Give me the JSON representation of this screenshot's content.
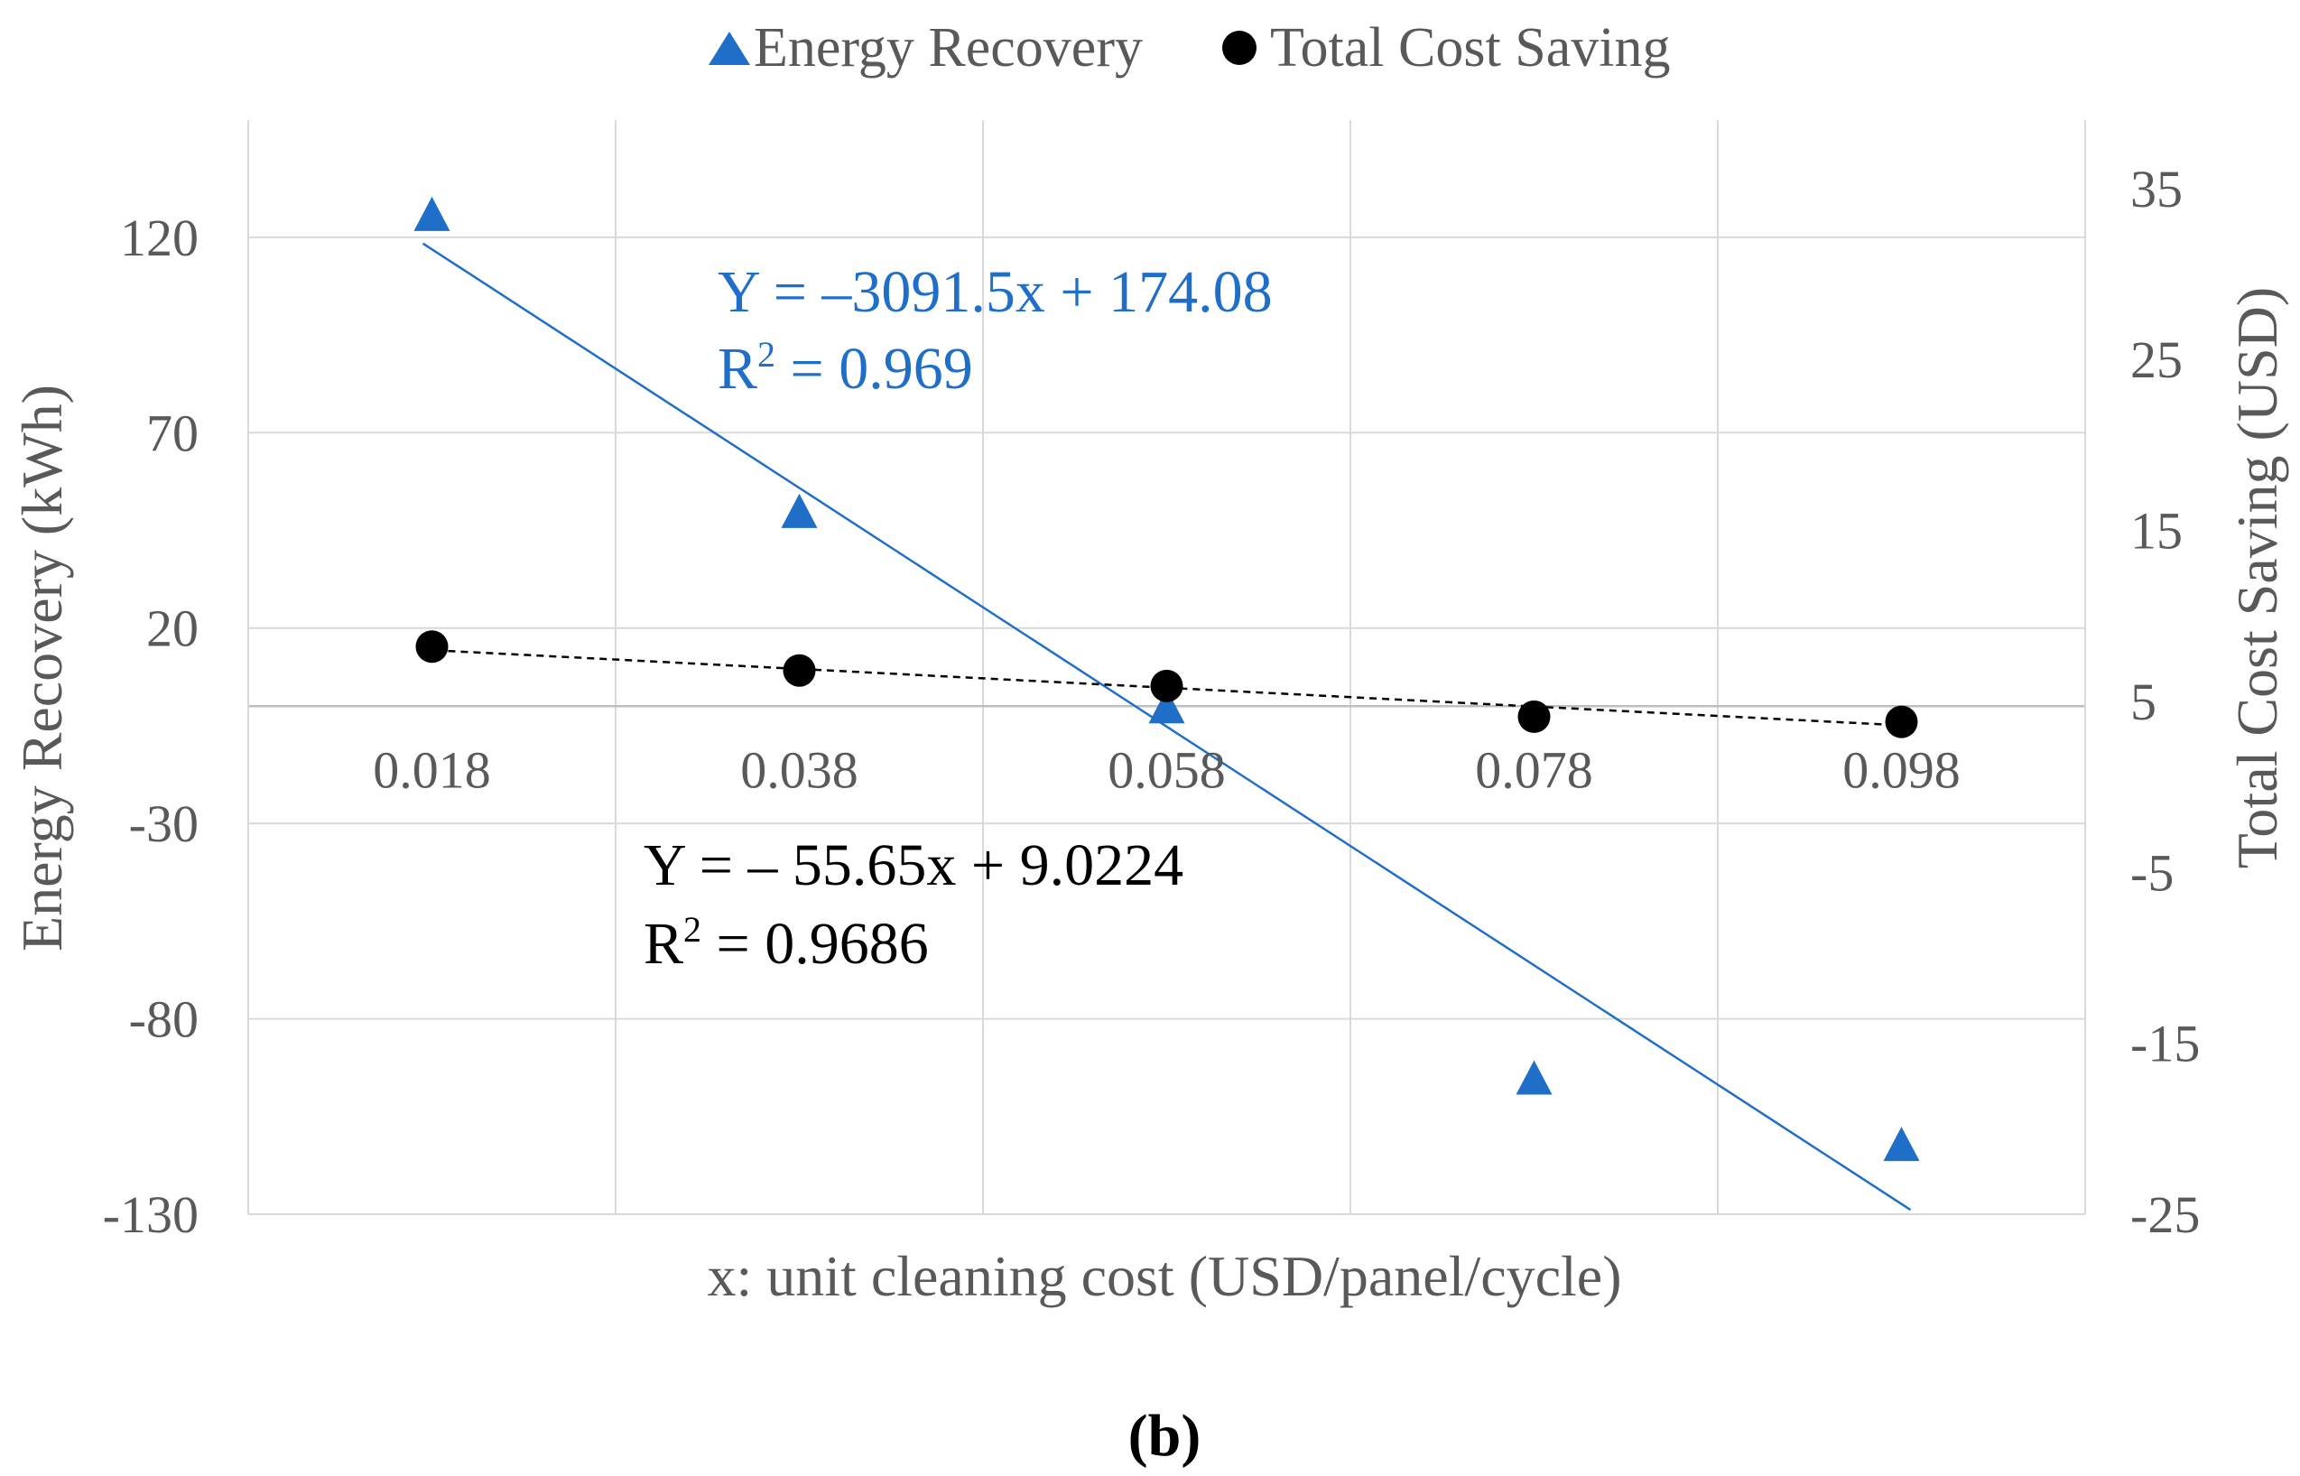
{
  "chart_data": {
    "type": "scatter",
    "categories": [
      "0.018",
      "0.038",
      "0.058",
      "0.078",
      "0.098"
    ],
    "x": [
      0.018,
      0.038,
      0.058,
      0.078,
      0.098
    ],
    "xlabel": "x: unit cleaning cost (USD/panel/cycle)",
    "ylabel_left": "Energy Recovery (kWh)",
    "ylabel_right": "Total Cost Saving  (USD)",
    "ylim_left": [
      -130,
      150
    ],
    "yticks_left": [
      120,
      70,
      20,
      -30,
      -80,
      -130
    ],
    "ytick_labels_left": [
      "120",
      "70",
      "20",
      "-30",
      "-80",
      "-130"
    ],
    "ylim_right": [
      -25,
      39
    ],
    "yticks_right": [
      35,
      25,
      15,
      5,
      -5,
      -15,
      -25
    ],
    "ytick_labels_right": [
      "35",
      "25",
      "15",
      "5",
      "-5",
      "-15",
      "-25"
    ],
    "grid": true,
    "legend_position": "top-center",
    "series": [
      {
        "name": "Energy Recovery",
        "axis": "left",
        "marker": "triangle",
        "color": "#1f6fc9",
        "values": [
          126,
          50,
          0,
          -95,
          -112
        ],
        "trendline": {
          "slope": -3091.5,
          "intercept": 174.08,
          "style": "solid"
        },
        "equation": "Y = –3091.5x + 174.08",
        "r2_prefix": "R",
        "r2_sup": "2",
        "r2_value": " = 0.969"
      },
      {
        "name": "Total Cost Saving",
        "axis": "right",
        "marker": "circle",
        "color": "#000000",
        "values": [
          8.2,
          6.8,
          5.9,
          4.1,
          3.8
        ],
        "trendline": {
          "slope": -55.65,
          "intercept": 9.0224,
          "style": "dashed"
        },
        "equation": "Y = – 55.65x + 9.0224",
        "r2_prefix": "R",
        "r2_sup": "2",
        "r2_value": " = 0.9686"
      }
    ],
    "panel_label": "(b)"
  }
}
